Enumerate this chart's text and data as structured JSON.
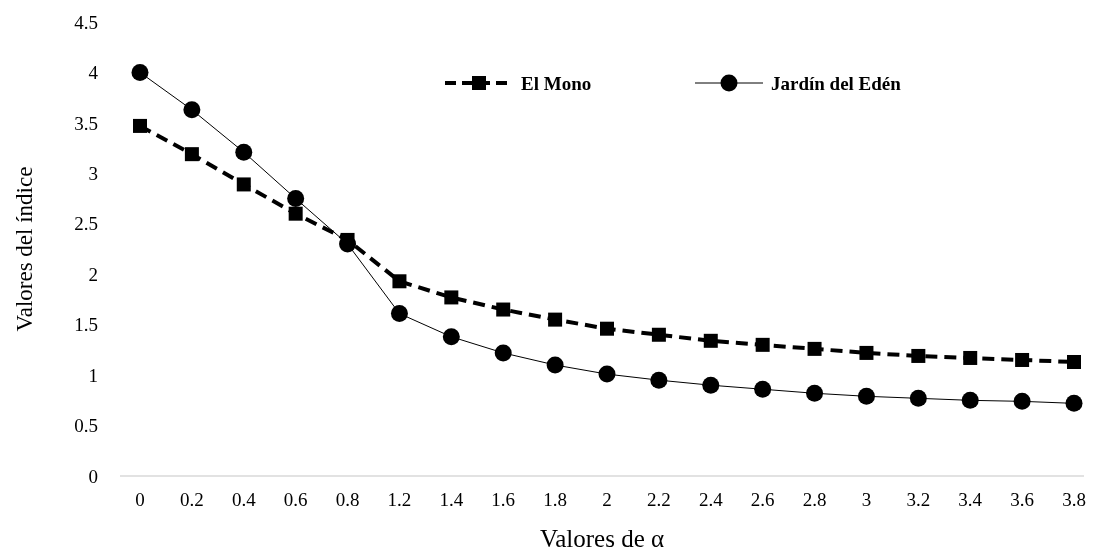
{
  "chart_data": {
    "type": "line",
    "xlabel": "Valores de α",
    "ylabel": "Valores del índice",
    "categories": [
      "0",
      "0.2",
      "0.4",
      "0.6",
      "0.8",
      "1.2",
      "1.4",
      "1.6",
      "1.8",
      "2",
      "2.2",
      "2.4",
      "2.6",
      "2.8",
      "3",
      "3.2",
      "3.4",
      "3.6",
      "3.8"
    ],
    "ylim": [
      0,
      4.5
    ],
    "yticks": [
      0,
      0.5,
      1,
      1.5,
      2,
      2.5,
      3,
      3.5,
      4,
      4.5
    ],
    "grid": false,
    "legend": "top",
    "series": [
      {
        "name": "El Mono",
        "color": "#000000",
        "marker": "square",
        "line_style": "dashed",
        "values": [
          3.47,
          3.19,
          2.89,
          2.6,
          2.34,
          1.93,
          1.77,
          1.65,
          1.55,
          1.46,
          1.4,
          1.34,
          1.3,
          1.26,
          1.22,
          1.19,
          1.17,
          1.15,
          1.13
        ]
      },
      {
        "name": "Jardín del Edén",
        "color": "#000000",
        "marker": "circle",
        "line_style": "solid",
        "values": [
          4.0,
          3.63,
          3.21,
          2.75,
          2.3,
          1.61,
          1.38,
          1.22,
          1.1,
          1.01,
          0.95,
          0.9,
          0.86,
          0.82,
          0.79,
          0.77,
          0.75,
          0.74,
          0.72
        ]
      }
    ]
  }
}
